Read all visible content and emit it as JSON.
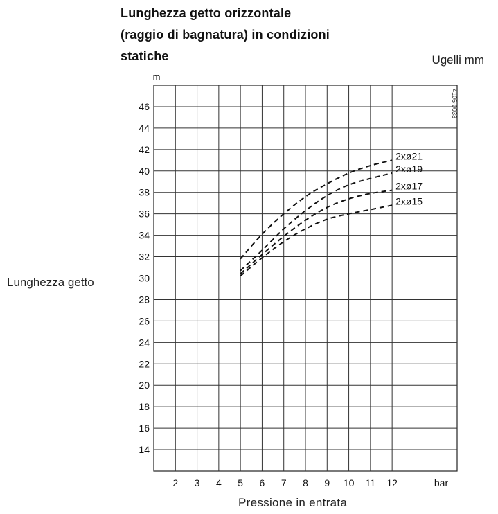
{
  "chart_data": {
    "type": "line",
    "title_lines": [
      "Lunghezza getto orizzontale",
      "(raggio di bagnatura) in condizioni",
      "statiche"
    ],
    "legend_title": "Ugelli mm",
    "ylabel": "Lunghezza getto",
    "yunit": "m",
    "xlabel": "Pressione in entrata",
    "xunit": "bar",
    "code": "4106-0033",
    "x_ticks": [
      "2",
      "3",
      "4",
      "5",
      "6",
      "7",
      "8",
      "9",
      "10",
      "11",
      "12"
    ],
    "y_ticks": [
      "14",
      "16",
      "18",
      "20",
      "22",
      "24",
      "26",
      "28",
      "30",
      "32",
      "34",
      "36",
      "38",
      "40",
      "42",
      "44",
      "46"
    ],
    "xlim": [
      1,
      15
    ],
    "ylim": [
      12,
      48
    ],
    "grid": true,
    "series": [
      {
        "name": "2xø21",
        "x": [
          5,
          6,
          7,
          8,
          9,
          10,
          11,
          12
        ],
        "y": [
          31.8,
          34.1,
          36.0,
          37.6,
          38.8,
          39.8,
          40.5,
          41.0
        ]
      },
      {
        "name": "2xø19",
        "x": [
          5,
          6,
          7,
          8,
          9,
          10,
          11,
          12
        ],
        "y": [
          30.7,
          32.6,
          34.6,
          36.3,
          37.7,
          38.7,
          39.3,
          39.8
        ]
      },
      {
        "name": "2xø17",
        "x": [
          5,
          6,
          7,
          8,
          9,
          10,
          11,
          12
        ],
        "y": [
          30.4,
          32.2,
          33.9,
          35.4,
          36.6,
          37.4,
          37.9,
          38.2
        ]
      },
      {
        "name": "2xø15",
        "x": [
          5,
          6,
          7,
          8,
          9,
          10,
          11,
          12
        ],
        "y": [
          30.2,
          31.9,
          33.4,
          34.6,
          35.5,
          36.0,
          36.4,
          36.8
        ]
      }
    ]
  }
}
